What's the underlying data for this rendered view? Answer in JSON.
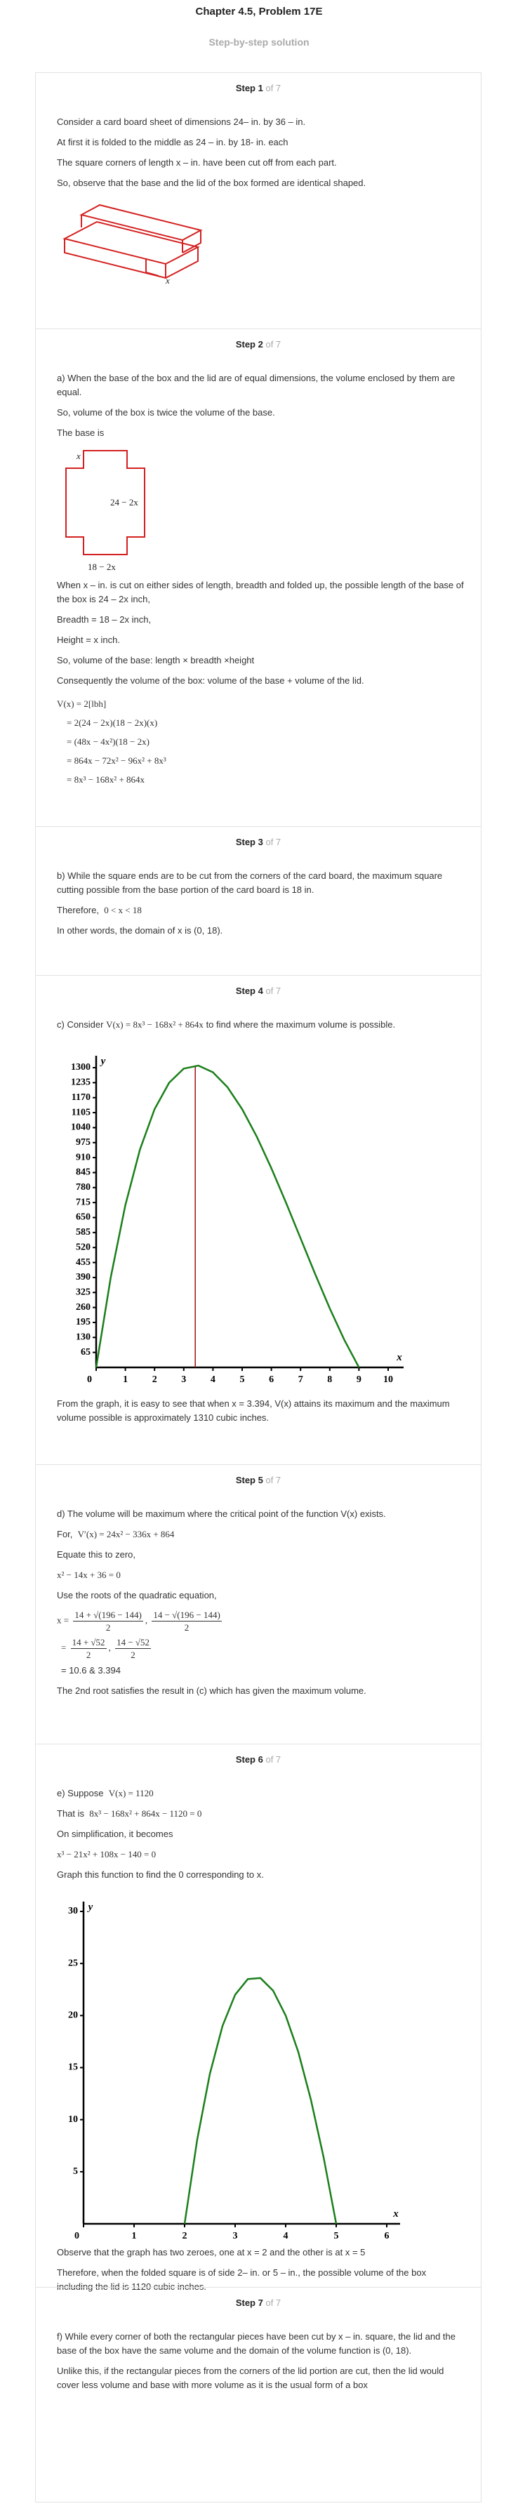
{
  "header": {
    "title": "Chapter 4.5, Problem 17E",
    "subtitle": "Step-by-step solution"
  },
  "steps": [
    {
      "heading": "Step 1",
      "count": "of 7",
      "text": [
        "Consider a card board sheet of dimensions 24– in. by 36 – in.",
        "At first it is folded to the middle as 24 – in. by 18- in. each",
        "The square corners of length x – in. have been cut off from each part.",
        "So, observe that the base and the lid of the box formed are identical shaped."
      ],
      "figure_label": "x"
    },
    {
      "heading": "Step 2",
      "count": "of 7",
      "text": [
        "a) When the base of the box and the lid are of equal dimensions, the volume enclosed by them are equal.",
        "So, volume of the box is twice the volume of the base.",
        "The base is"
      ],
      "figure_labels": [
        "x",
        "24 − 2x",
        "18 − 2x"
      ],
      "text2": [
        "When x – in. is cut on either sides of length, breadth and folded up, the possible length of the base of the box is 24 – 2x inch,",
        "Breadth = 18 – 2x inch,",
        "Height = x inch.",
        "So, volume of the base: length × breadth ×height",
        "Consequently the volume of the box: volume of the base + volume of the lid."
      ],
      "equations": [
        "V(x) = 2[lbh]",
        "= 2(24 − 2x)(18 − 2x)(x)",
        "= (48x − 4x²)(18 − 2x)",
        "= 864x − 72x² − 96x² + 8x³",
        "= 8x³ − 168x² + 864x"
      ]
    },
    {
      "heading": "Step 3",
      "count": "of 7",
      "text": [
        "b) While the square ends are to be cut from the corners of the card board, the maximum square cutting possible from the base portion of the card board is 18 in."
      ],
      "therefore": "Therefore,",
      "inequality": "0 < x < 18",
      "text2": [
        "In other words, the domain of x is (0, 18)."
      ]
    },
    {
      "heading": "Step 4",
      "count": "of 7",
      "intro": [
        "c) Consider",
        "V(x) = 8x³ − 168x² + 864x",
        "to find where the maximum volume is possible."
      ],
      "chart_data": {
        "type": "line",
        "x_label": "x",
        "y_label": "y",
        "x": [
          0,
          0.5,
          1,
          1.5,
          2,
          2.5,
          3,
          3.5,
          4,
          4.5,
          5,
          5.5,
          6,
          6.5,
          7,
          7.5,
          8,
          8.5,
          9
        ],
        "series": [
          {
            "color": "#1a7f1a",
            "values": [
              0,
              391,
              704,
              945,
              1120,
              1235,
              1296,
              1309,
              1280,
              1215,
              1120,
              1001,
              864,
              715,
              560,
              405,
              256,
              119,
              0
            ]
          }
        ],
        "marker": {
          "x": 3.394,
          "y": 1310,
          "color": "#a01010"
        },
        "xlim": [
          0,
          10
        ],
        "ylim": [
          0,
          1300
        ],
        "xticks": [
          0,
          1,
          2,
          3,
          4,
          5,
          6,
          7,
          8,
          9,
          10
        ],
        "yticks": [
          65,
          130,
          195,
          260,
          325,
          390,
          455,
          520,
          585,
          650,
          715,
          780,
          845,
          910,
          975,
          1040,
          1105,
          1170,
          1235,
          1300
        ]
      },
      "text": [
        "From the graph, it is easy to see that when x = 3.394, V(x) attains its maximum and the maximum volume possible is approximately 1310 cubic inches."
      ]
    },
    {
      "heading": "Step 5",
      "count": "of 7",
      "text": [
        "d) The volume will be maximum where the critical point of the function V(x) exists."
      ],
      "for": [
        "For,",
        "V′(x) = 24x² − 336x + 864"
      ],
      "text2": [
        "Equate this to zero,"
      ],
      "equation": "x² − 14x + 36 = 0",
      "text3": [
        "Use the roots of the quadratic equation,"
      ],
      "roots": [
        {
          "lhs": "x =",
          "a": {
            "num": "14 + √(196 − 144)",
            "den": "2"
          },
          "sep": ",",
          "b": {
            "num": "14 − √(196 − 144)",
            "den": "2"
          }
        },
        {
          "lhs": "=",
          "a": {
            "num": "14 + √52",
            "den": "2"
          },
          "sep": ",",
          "b": {
            "num": "14 − √52",
            "den": "2"
          }
        }
      ],
      "result": "= 10.6 & 3.394",
      "text4": [
        "The 2nd root satisfies the result in (c) which has given the maximum volume."
      ]
    },
    {
      "heading": "Step 6",
      "count": "of 7",
      "suppose": [
        "e) Suppose",
        "V(x) = 1120"
      ],
      "that_is": [
        "That is",
        "8x³ − 168x² + 864x − 1120 = 0"
      ],
      "text": [
        "On simplification, it becomes"
      ],
      "equation": "x³ − 21x² + 108x − 140 = 0",
      "text2": [
        "Graph this function to find the 0 corresponding to x."
      ],
      "chart_data": {
        "type": "line",
        "x_label": "x",
        "y_label": "y",
        "x": [
          2,
          2.25,
          2.5,
          2.75,
          3,
          3.25,
          3.5,
          3.75,
          4,
          4.25,
          4.5,
          4.75,
          5
        ],
        "series": [
          {
            "color": "#1a7f1a",
            "values": [
              0,
              8.1,
              14.4,
              19.0,
              22,
              23.5,
              23.6,
              22.4,
              20,
              16.5,
              11.9,
              6.4,
              0
            ]
          }
        ],
        "xlim": [
          0,
          6
        ],
        "ylim": [
          0,
          30
        ],
        "xticks": [
          0,
          1,
          2,
          3,
          4,
          5,
          6
        ],
        "yticks": [
          5,
          10,
          15,
          20,
          25,
          30
        ]
      },
      "text3": [
        "Observe that the graph has two zeroes, one at x = 2 and the other is at x = 5",
        "Therefore, when the folded square is of side 2– in. or 5 – in., the possible volume of the box including the lid is 1120 cubic inches."
      ]
    },
    {
      "heading": "Step 7",
      "count": "of 7",
      "text": [
        "f) While every corner of both the rectangular pieces have been cut by x – in. square, the lid and the base of the box have the same volume and the domain of the volume function is (0, 18).",
        "Unlike this, if the rectangular pieces from the corners of the lid portion are cut, then the lid would cover less volume and base with more volume as it is the usual form of a box"
      ]
    }
  ]
}
